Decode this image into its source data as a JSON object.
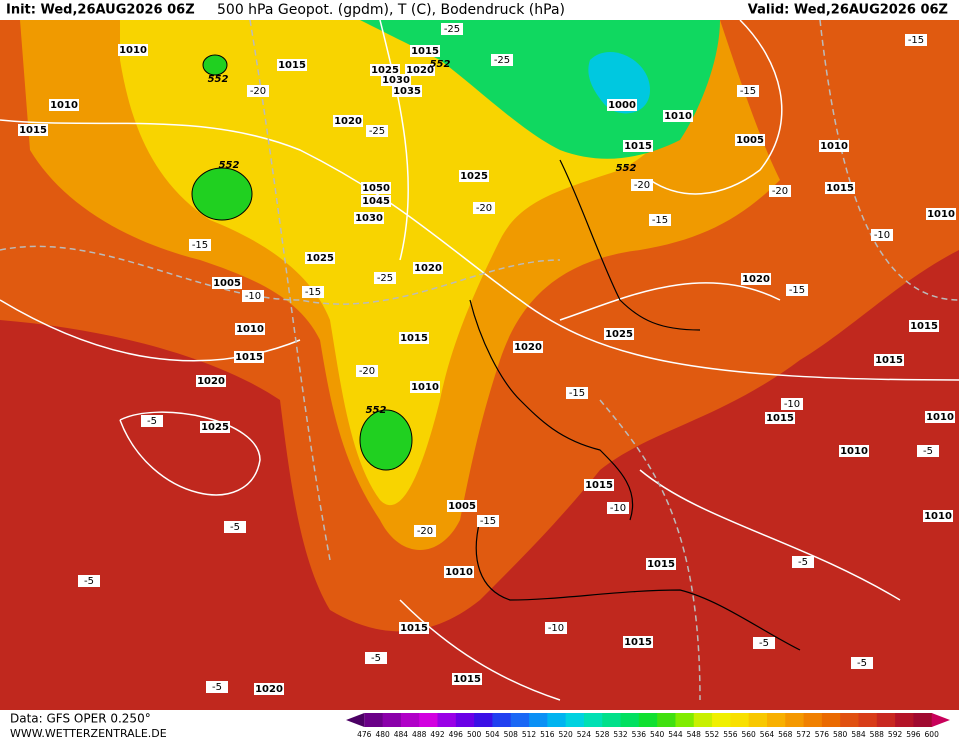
{
  "header": {
    "init": "Init: Wed,26AUG2026 06Z",
    "title": "500 hPa Geopot. (gpdm), T (C), Bodendruck (hPa)",
    "valid": "Valid: Wed,26AUG2026 06Z"
  },
  "footer": {
    "data": "Data: GFS OPER 0.250°",
    "site": "WWW.WETTERZENTRALE.DE"
  },
  "map": {
    "isobar_labels": [
      "1010",
      "1015",
      "1015",
      "1025",
      "1030",
      "1020",
      "1035",
      "1020",
      "1010",
      "1015",
      "1000",
      "1010",
      "1015",
      "1005",
      "1010",
      "1015",
      "1025",
      "1050",
      "1045",
      "1030",
      "1025",
      "1020",
      "1005",
      "1010",
      "1015",
      "1020",
      "1015",
      "1020",
      "1025",
      "1020",
      "1015",
      "1015",
      "1015",
      "1010",
      "1010",
      "1025",
      "1015",
      "1005",
      "1010",
      "1015",
      "1015",
      "1015",
      "1015",
      "1020",
      "1010",
      "1010",
      "1010"
    ],
    "temperature_labels": [
      "-25",
      "-25",
      "-20",
      "-25",
      "-15",
      "-15",
      "-20",
      "-20",
      "-20",
      "-15",
      "-10",
      "-15",
      "-15",
      "-10",
      "-25",
      "-15",
      "-20",
      "-15",
      "-10",
      "-5",
      "-5",
      "-5",
      "-10",
      "-15",
      "-20",
      "-5",
      "-5",
      "-10",
      "-5",
      "-5",
      "-5",
      "-5"
    ],
    "geopotential_labels": [
      "552",
      "552",
      "552",
      "552",
      "552"
    ]
  },
  "colorbar": {
    "labels": [
      476,
      480,
      484,
      488,
      492,
      496,
      500,
      504,
      508,
      512,
      516,
      520,
      524,
      528,
      532,
      536,
      540,
      544,
      548,
      552,
      556,
      560,
      564,
      568,
      572,
      576,
      580,
      584,
      588,
      592,
      596,
      600
    ],
    "colors": [
      "#4b0064",
      "#6a0088",
      "#8a00aa",
      "#b000c8",
      "#d200e0",
      "#9a00e6",
      "#6a00e6",
      "#3a10e6",
      "#2040f0",
      "#1a68f5",
      "#0a90f5",
      "#00b4f0",
      "#00d2e0",
      "#00e0b4",
      "#00e08a",
      "#00e060",
      "#10e030",
      "#40e010",
      "#80ec00",
      "#c8f000",
      "#f0f000",
      "#f8e000",
      "#f8c800",
      "#f8b000",
      "#f49800",
      "#f08000",
      "#ea6a00",
      "#e05010",
      "#d83c18",
      "#c82820",
      "#b41428",
      "#a00a30",
      "#c8005a"
    ]
  }
}
